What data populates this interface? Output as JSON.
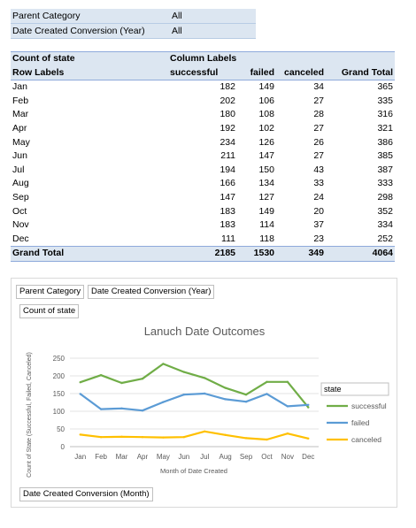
{
  "filters": [
    {
      "label": "Parent Category",
      "value": "All"
    },
    {
      "label": "Date Created Conversion (Year)",
      "value": "All"
    }
  ],
  "pivot": {
    "header_row1": {
      "values_label": "Count of state",
      "columns_label": "Column Labels"
    },
    "header_row2": {
      "rows_label": "Row Labels",
      "c1": "successful",
      "c2": "failed",
      "c3": "canceled",
      "c4": "Grand Total"
    },
    "rows": [
      {
        "label": "Jan",
        "successful": "182",
        "failed": "149",
        "canceled": "34",
        "total": "365"
      },
      {
        "label": "Feb",
        "successful": "202",
        "failed": "106",
        "canceled": "27",
        "total": "335"
      },
      {
        "label": "Mar",
        "successful": "180",
        "failed": "108",
        "canceled": "28",
        "total": "316"
      },
      {
        "label": "Apr",
        "successful": "192",
        "failed": "102",
        "canceled": "27",
        "total": "321"
      },
      {
        "label": "May",
        "successful": "234",
        "failed": "126",
        "canceled": "26",
        "total": "386"
      },
      {
        "label": "Jun",
        "successful": "211",
        "failed": "147",
        "canceled": "27",
        "total": "385"
      },
      {
        "label": "Jul",
        "successful": "194",
        "failed": "150",
        "canceled": "43",
        "total": "387"
      },
      {
        "label": "Aug",
        "successful": "166",
        "failed": "134",
        "canceled": "33",
        "total": "333"
      },
      {
        "label": "Sep",
        "successful": "147",
        "failed": "127",
        "canceled": "24",
        "total": "298"
      },
      {
        "label": "Oct",
        "successful": "183",
        "failed": "149",
        "canceled": "20",
        "total": "352"
      },
      {
        "label": "Nov",
        "successful": "183",
        "failed": "114",
        "canceled": "37",
        "total": "334"
      },
      {
        "label": "Dec",
        "successful": "111",
        "failed": "118",
        "canceled": "23",
        "total": "252"
      }
    ],
    "grand_total": {
      "label": "Grand Total",
      "successful": "2185",
      "failed": "1530",
      "canceled": "349",
      "total": "4064"
    }
  },
  "chart_panel": {
    "filter_button_1": "Parent Category",
    "filter_button_2": "Date Created Conversion (Year)",
    "values_button": "Count of state",
    "axis_button": "Date Created Conversion (Month)",
    "legend_button": "state"
  },
  "chart_data": {
    "type": "line",
    "title": "Lanuch Date Outcomes",
    "xlabel": "Month of Date Created",
    "ylabel": "Count of State (Successful, Failed, Canceled)",
    "categories": [
      "Jan",
      "Feb",
      "Mar",
      "Apr",
      "May",
      "Jun",
      "Jul",
      "Aug",
      "Sep",
      "Oct",
      "Nov",
      "Dec"
    ],
    "ylim": [
      0,
      250
    ],
    "yticks": [
      "0",
      "50",
      "100",
      "150",
      "200",
      "250"
    ],
    "grid": true,
    "legend_position": "right",
    "series": [
      {
        "name": "successful",
        "color": "#70ad47",
        "values": [
          182,
          202,
          180,
          192,
          234,
          211,
          194,
          166,
          147,
          183,
          183,
          111
        ]
      },
      {
        "name": "failed",
        "color": "#5b9bd5",
        "values": [
          149,
          106,
          108,
          102,
          126,
          147,
          150,
          134,
          127,
          149,
          114,
          118
        ]
      },
      {
        "name": "canceled",
        "color": "#ffc000",
        "values": [
          34,
          27,
          28,
          27,
          26,
          27,
          43,
          33,
          24,
          20,
          37,
          23
        ]
      }
    ]
  }
}
